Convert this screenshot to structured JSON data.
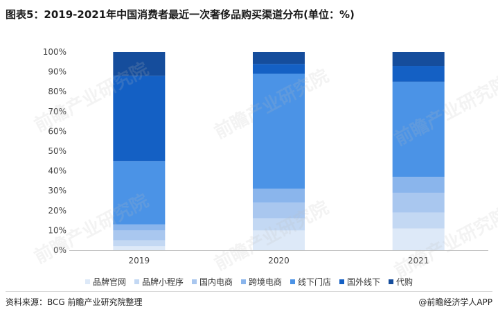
{
  "chart_data": {
    "type": "bar",
    "stacked": true,
    "title": "图表5：2019-2021年中国消费者最近一次奢侈品购买渠道分布(单位：%)",
    "categories": [
      "2019",
      "2020",
      "2021"
    ],
    "yticks": [
      "0%",
      "10%",
      "20%",
      "30%",
      "40%",
      "50%",
      "60%",
      "70%",
      "80%",
      "90%",
      "100%"
    ],
    "ylim": [
      0,
      100
    ],
    "grid": false,
    "legend_position": "bottom",
    "series": [
      {
        "name": "品牌官网",
        "color": "#dde9f8",
        "values": [
          2,
          10,
          11
        ]
      },
      {
        "name": "品牌小程序",
        "color": "#c3d8f3",
        "values": [
          3,
          6,
          8
        ]
      },
      {
        "name": "国内电商",
        "color": "#a9c7ef",
        "values": [
          5,
          8,
          10
        ]
      },
      {
        "name": "跨境电商",
        "color": "#8ab5ec",
        "values": [
          3,
          7,
          8
        ]
      },
      {
        "name": "线下门店",
        "color": "#4b93e6",
        "values": [
          32,
          58,
          48
        ]
      },
      {
        "name": "国外线下",
        "color": "#1460c4",
        "values": [
          43,
          5,
          8
        ]
      },
      {
        "name": "代购",
        "color": "#154d9c",
        "values": [
          12,
          6,
          7
        ]
      }
    ]
  },
  "footer": {
    "source": "资料来源：BCG 前瞻产业研究院整理",
    "publisher": "@前瞻经济学人APP"
  },
  "watermark_text": "前瞻产业研究院"
}
